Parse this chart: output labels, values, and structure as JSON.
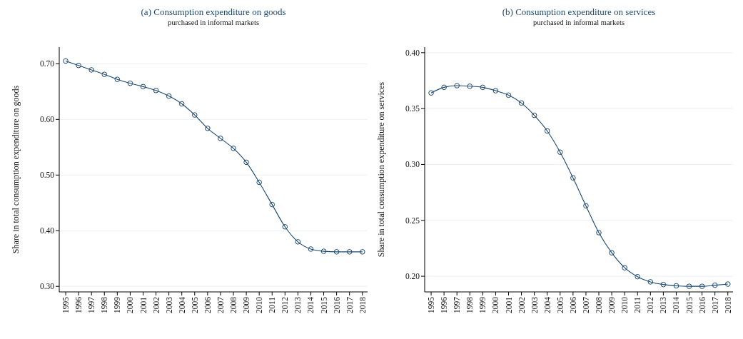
{
  "chart_data": [
    {
      "type": "line",
      "title": "(a) Consumption expenditure on goods",
      "subtitle": "purchased in informal markets",
      "ylabel": "Share in total consumption expenditure on goods",
      "x": [
        1995,
        1996,
        1997,
        1998,
        1999,
        2000,
        2001,
        2002,
        2003,
        2004,
        2005,
        2006,
        2007,
        2008,
        2009,
        2010,
        2011,
        2012,
        2013,
        2014,
        2015,
        2016,
        2017,
        2018
      ],
      "series": [
        {
          "color": "#1a476f",
          "values": [
            0.705,
            0.697,
            0.689,
            0.681,
            0.672,
            0.665,
            0.659,
            0.652,
            0.642,
            0.628,
            0.608,
            0.584,
            0.566,
            0.548,
            0.523,
            0.487,
            0.447,
            0.407,
            0.38,
            0.367,
            0.363,
            0.362,
            0.362,
            0.362
          ]
        }
      ],
      "xlim": [
        1994.5,
        2018.4
      ],
      "xticks": [
        1995,
        1996,
        1997,
        1998,
        1999,
        2000,
        2001,
        2002,
        2003,
        2004,
        2005,
        2006,
        2007,
        2008,
        2009,
        2010,
        2011,
        2012,
        2013,
        2014,
        2015,
        2016,
        2017,
        2018
      ],
      "ylim": [
        0.29,
        0.73
      ],
      "yticks": [
        {
          "value": 0.3,
          "label": "0.30"
        },
        {
          "value": 0.4,
          "label": "0.40"
        },
        {
          "value": 0.5,
          "label": "0.50"
        },
        {
          "value": 0.6,
          "label": "0.60"
        },
        {
          "value": 0.7,
          "label": "0.70"
        }
      ],
      "grid": "y",
      "marker": "circle",
      "line_style": "solid"
    },
    {
      "type": "line",
      "title": "(b) Consumption expenditure on services",
      "subtitle": "purchased in informal markets",
      "ylabel": "Share in total consumption expenditure on services",
      "x": [
        1995,
        1996,
        1997,
        1998,
        1999,
        2000,
        2001,
        2002,
        2003,
        2004,
        2005,
        2006,
        2007,
        2008,
        2009,
        2010,
        2011,
        2012,
        2013,
        2014,
        2015,
        2016,
        2017,
        2018
      ],
      "series": [
        {
          "color": "#1a476f",
          "values": [
            0.364,
            0.369,
            0.3705,
            0.37,
            0.369,
            0.366,
            0.362,
            0.355,
            0.344,
            0.33,
            0.311,
            0.288,
            0.263,
            0.239,
            0.221,
            0.2076,
            0.1996,
            0.195,
            0.1926,
            0.1914,
            0.191,
            0.191,
            0.192,
            0.193
          ]
        }
      ],
      "xlim": [
        1994.5,
        2018.4
      ],
      "xticks": [
        1995,
        1996,
        1997,
        1998,
        1999,
        2000,
        2001,
        2002,
        2003,
        2004,
        2005,
        2006,
        2007,
        2008,
        2009,
        2010,
        2011,
        2012,
        2013,
        2014,
        2015,
        2016,
        2017,
        2018
      ],
      "ylim": [
        0.186,
        0.405
      ],
      "yticks": [
        {
          "value": 0.2,
          "label": "0.20"
        },
        {
          "value": 0.25,
          "label": "0.25"
        },
        {
          "value": 0.3,
          "label": "0.30"
        },
        {
          "value": 0.35,
          "label": "0.35"
        },
        {
          "value": 0.4,
          "label": "0.40"
        }
      ],
      "grid": "y",
      "marker": "circle",
      "line_style": "solid"
    }
  ]
}
